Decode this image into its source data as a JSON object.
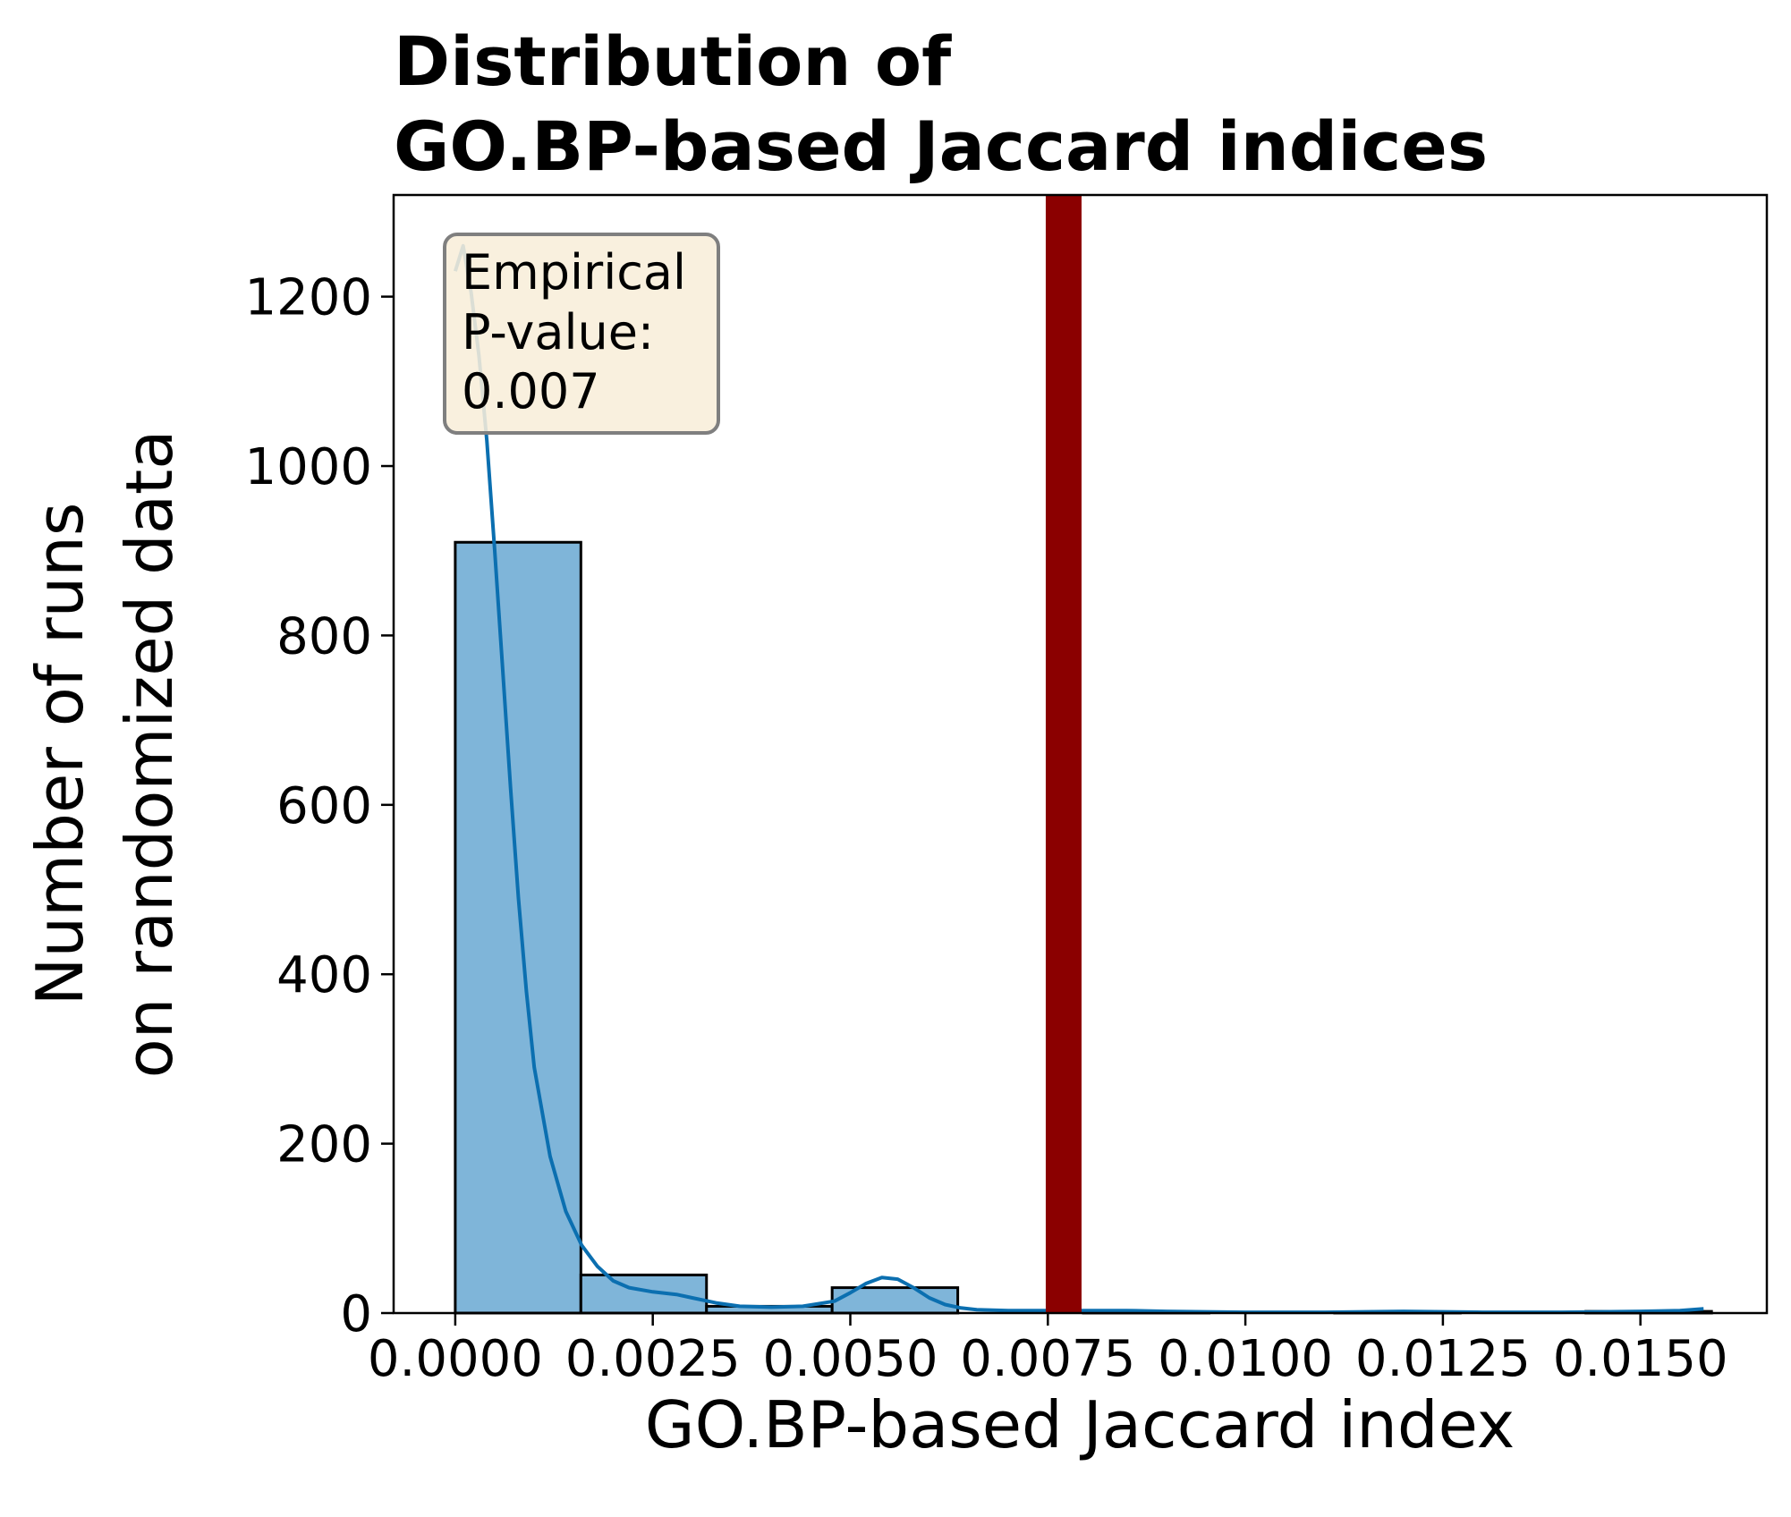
{
  "chart_data": {
    "type": "bar",
    "title_lines": [
      "Distribution of",
      "GO.BP-based Jaccard indices"
    ],
    "xlabel": "GO.BP-based Jaccard index",
    "ylabel_lines": [
      "Number of runs",
      "on randomized data"
    ],
    "xlim": [
      -0.00078,
      0.0166
    ],
    "ylim": [
      0,
      1320
    ],
    "x_ticks": [
      0.0,
      0.0025,
      0.005,
      0.0075,
      0.01,
      0.0125,
      0.015
    ],
    "x_tick_labels": [
      "0.0000",
      "0.0025",
      "0.0050",
      "0.0075",
      "0.0100",
      "0.0125",
      "0.0150"
    ],
    "y_ticks": [
      0,
      200,
      400,
      600,
      800,
      1000,
      1200
    ],
    "y_tick_labels": [
      "0",
      "200",
      "400",
      "600",
      "800",
      "1000",
      "1200"
    ],
    "bins": [
      {
        "start": 0.0,
        "end": 0.00159,
        "count": 910
      },
      {
        "start": 0.00159,
        "end": 0.00318,
        "count": 45
      },
      {
        "start": 0.00318,
        "end": 0.00477,
        "count": 8
      },
      {
        "start": 0.00477,
        "end": 0.00636,
        "count": 30
      },
      {
        "start": 0.00636,
        "end": 0.00795,
        "count": 0
      },
      {
        "start": 0.00795,
        "end": 0.00954,
        "count": 1
      },
      {
        "start": 0.00954,
        "end": 0.01113,
        "count": 0
      },
      {
        "start": 0.01113,
        "end": 0.01272,
        "count": 1
      },
      {
        "start": 0.01272,
        "end": 0.01431,
        "count": 0
      },
      {
        "start": 0.01431,
        "end": 0.0159,
        "count": 2
      }
    ],
    "kde": {
      "x": [
        0.0,
        0.0001,
        0.0002,
        0.0003,
        0.0004,
        0.0005,
        0.0006,
        0.0007,
        0.0008,
        0.0009,
        0.001,
        0.0012,
        0.0014,
        0.0016,
        0.0018,
        0.002,
        0.0022,
        0.0025,
        0.0028,
        0.003,
        0.0033,
        0.0036,
        0.004,
        0.0044,
        0.0048,
        0.005,
        0.0052,
        0.0054,
        0.0056,
        0.0058,
        0.006,
        0.0062,
        0.0064,
        0.0066,
        0.007,
        0.0075,
        0.008,
        0.0085,
        0.009,
        0.01,
        0.011,
        0.012,
        0.013,
        0.014,
        0.015,
        0.0155,
        0.0158
      ],
      "y": [
        1230,
        1260,
        1205,
        1130,
        1030,
        900,
        760,
        620,
        490,
        380,
        290,
        185,
        120,
        80,
        55,
        38,
        30,
        25,
        22,
        18,
        12,
        8,
        7,
        8,
        14,
        24,
        35,
        42,
        40,
        30,
        18,
        10,
        6,
        4,
        3,
        3,
        3,
        3,
        2,
        1,
        1,
        2,
        1,
        1,
        2,
        3,
        5
      ]
    },
    "observed_value": 0.0077,
    "annotation_lines": [
      "Empirical",
      "P-value:",
      "0.007"
    ],
    "colors": {
      "bar_fill": "#7fb5d9",
      "bar_edge": "#000000",
      "kde_line": "#0b6fb0",
      "observed_line": "#8b0000",
      "annotation_bg": "#f8eed9",
      "annotation_edge": "#7f7f7f"
    },
    "grid": false,
    "legend": "none"
  }
}
